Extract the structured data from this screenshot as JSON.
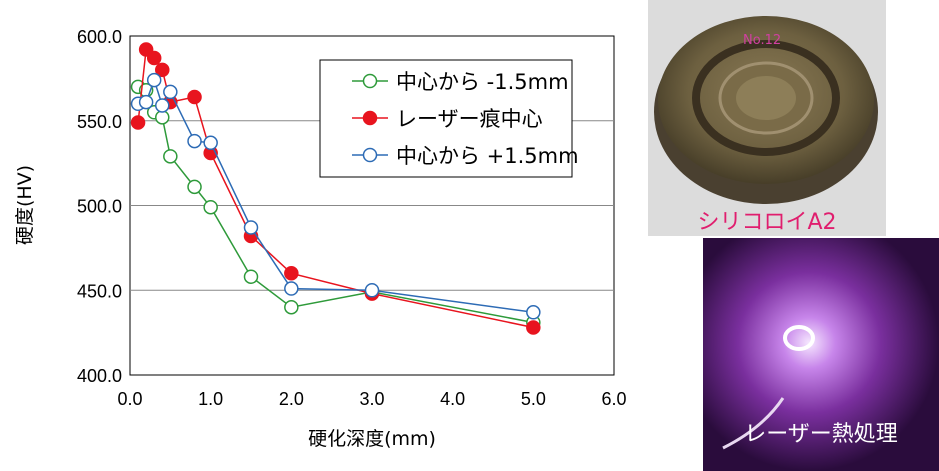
{
  "chart_data": {
    "type": "line",
    "title": "",
    "xlabel": "硬化深度(mm)",
    "ylabel": "硬度(HV)",
    "xlim": [
      0,
      6
    ],
    "ylim": [
      400,
      600
    ],
    "xticks": [
      "0.0",
      "1.0",
      "2.0",
      "3.0",
      "4.0",
      "5.0",
      "6.0"
    ],
    "yticks": [
      "400.0",
      "450.0",
      "500.0",
      "550.0",
      "600.0"
    ],
    "grid": "horizontal",
    "legend_position": "top-right",
    "series": [
      {
        "name": "中心から -1.5mm",
        "color": "#2e9a3a",
        "marker": "open-circle",
        "x": [
          0.1,
          0.2,
          0.3,
          0.4,
          0.5,
          0.8,
          1.0,
          1.5,
          2.0,
          3.0,
          5.0
        ],
        "y": [
          570,
          568,
          555,
          552,
          529,
          511,
          499,
          458,
          440,
          449,
          431
        ]
      },
      {
        "name": "レーザー痕中心",
        "color": "#e8141e",
        "marker": "filled-circle",
        "x": [
          0.1,
          0.2,
          0.3,
          0.4,
          0.5,
          0.8,
          1.0,
          1.5,
          2.0,
          3.0,
          5.0
        ],
        "y": [
          549,
          592,
          587,
          580,
          561,
          564,
          531,
          482,
          460,
          448,
          428
        ]
      },
      {
        "name": "中心から +1.5mm",
        "color": "#2d6bb5",
        "marker": "open-circle",
        "x": [
          0.1,
          0.2,
          0.3,
          0.4,
          0.5,
          0.8,
          1.0,
          1.5,
          2.0,
          3.0,
          5.0
        ],
        "y": [
          560,
          561,
          574,
          559,
          567,
          538,
          537,
          487,
          451,
          450,
          437
        ]
      }
    ]
  },
  "photos": [
    {
      "caption": "シリコロイA2",
      "caption_color": "#e01e6e",
      "engraving": "No.12"
    },
    {
      "caption": "レーザー熱処理",
      "caption_color": "#ffffff"
    }
  ]
}
